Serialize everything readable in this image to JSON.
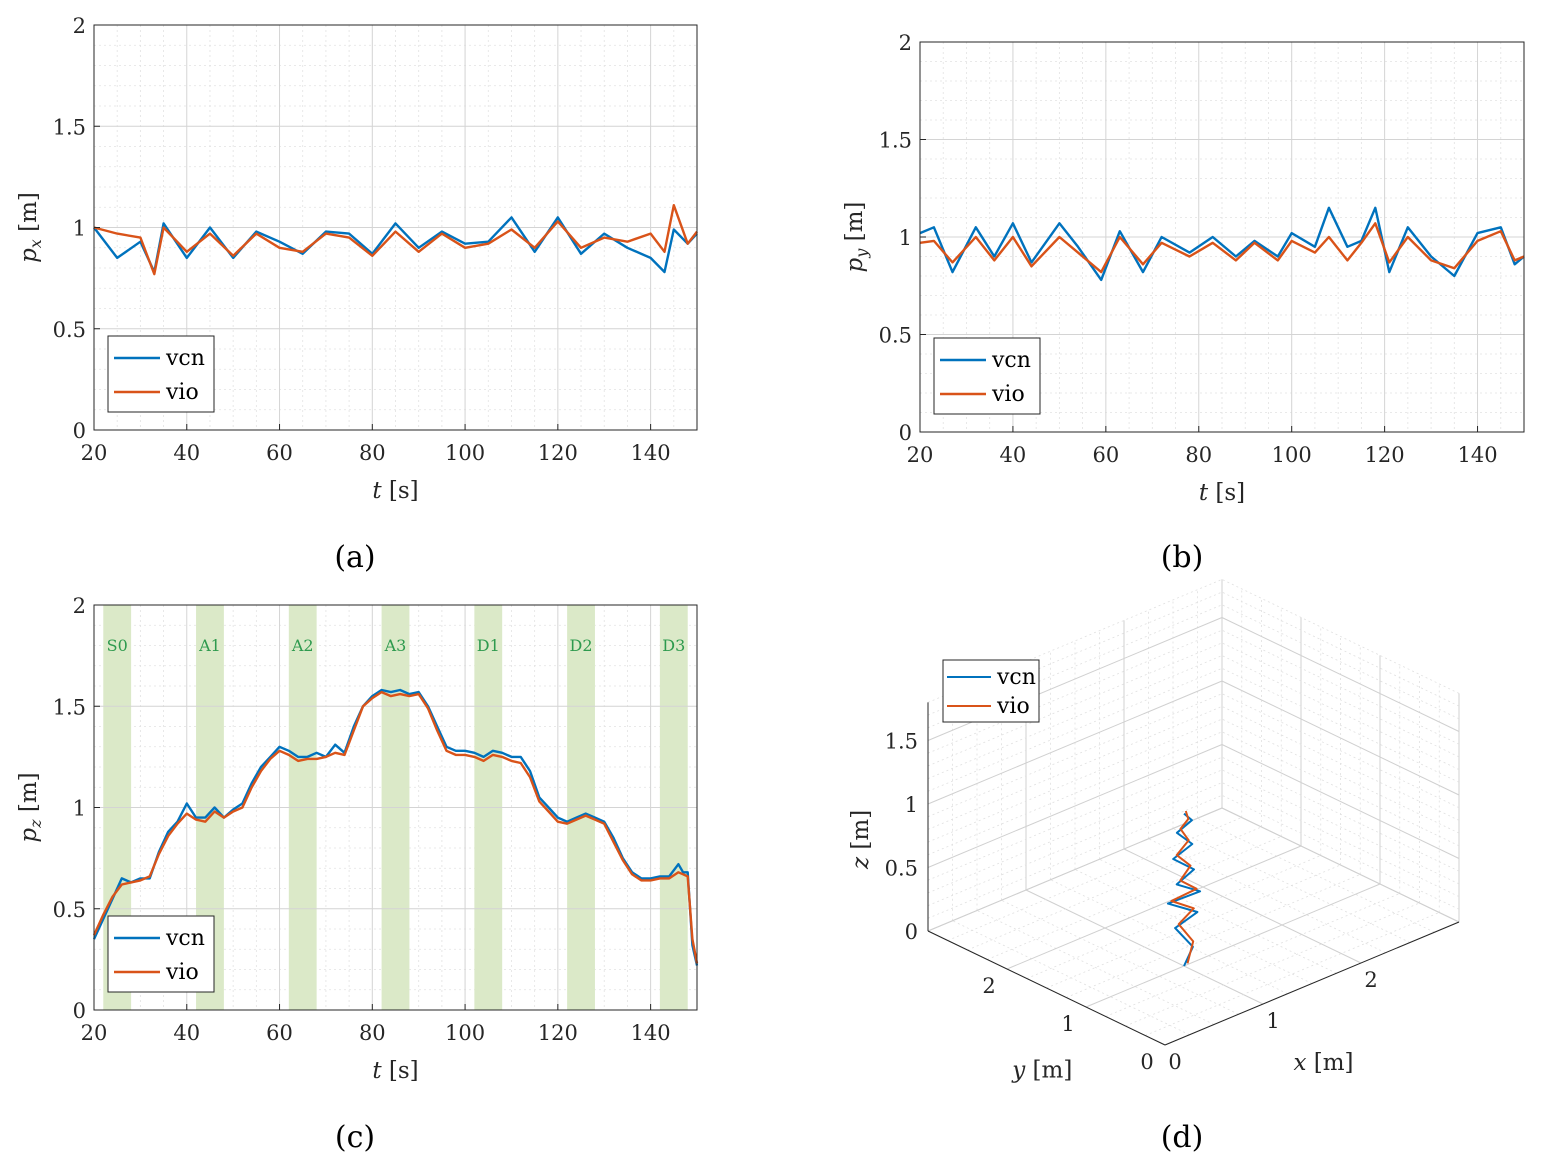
{
  "colors": {
    "vcn": "#0072BD",
    "vio": "#D95319",
    "phase_fill": "#dbe9c8",
    "phase_text": "#2e9a4e"
  },
  "legend": [
    "vcn",
    "vio"
  ],
  "subfigures": {
    "a": {
      "caption": "(a)",
      "ylabel": "p_x [m]",
      "xlabel": "t [s]"
    },
    "b": {
      "caption": "(b)",
      "ylabel": "p_y [m]",
      "xlabel": "t [s]"
    },
    "c": {
      "caption": "(c)",
      "ylabel": "p_z [m]",
      "xlabel": "t [s]"
    },
    "d": {
      "caption": "(d)",
      "xlabel": "x [m]",
      "ylabel": "y [m]",
      "zlabel": "z [m]"
    }
  },
  "chart_data": [
    {
      "id": "a",
      "type": "line",
      "title": "",
      "xlabel": "t [s]",
      "ylabel": "p_x [m]",
      "xlim": [
        20,
        150
      ],
      "ylim": [
        0,
        2
      ],
      "grid": true,
      "legend_position": "bottom-left",
      "xticks": [
        20,
        40,
        60,
        80,
        100,
        120,
        140
      ],
      "yticks": [
        0,
        0.5,
        1,
        1.5,
        2
      ],
      "x": [
        20,
        25,
        30,
        33,
        35,
        40,
        45,
        50,
        55,
        60,
        65,
        70,
        75,
        80,
        85,
        90,
        95,
        100,
        105,
        110,
        115,
        120,
        125,
        130,
        135,
        140,
        143,
        145,
        148,
        150
      ],
      "series": [
        {
          "name": "vcn",
          "values": [
            1.0,
            0.85,
            0.93,
            0.78,
            1.02,
            0.85,
            1.0,
            0.85,
            0.98,
            0.93,
            0.87,
            0.98,
            0.97,
            0.87,
            1.02,
            0.9,
            0.98,
            0.92,
            0.93,
            1.05,
            0.88,
            1.05,
            0.87,
            0.97,
            0.9,
            0.85,
            0.78,
            0.99,
            0.92,
            0.97
          ]
        },
        {
          "name": "vio",
          "values": [
            1.0,
            0.97,
            0.95,
            0.77,
            1.0,
            0.88,
            0.97,
            0.86,
            0.97,
            0.9,
            0.88,
            0.97,
            0.95,
            0.86,
            0.98,
            0.88,
            0.97,
            0.9,
            0.92,
            0.99,
            0.9,
            1.03,
            0.9,
            0.95,
            0.93,
            0.97,
            0.88,
            1.11,
            0.92,
            0.98
          ]
        }
      ]
    },
    {
      "id": "b",
      "type": "line",
      "title": "",
      "xlabel": "t [s]",
      "ylabel": "p_y [m]",
      "xlim": [
        20,
        150
      ],
      "ylim": [
        0,
        2
      ],
      "grid": true,
      "legend_position": "bottom-left",
      "xticks": [
        20,
        40,
        60,
        80,
        100,
        120,
        140
      ],
      "yticks": [
        0,
        0.5,
        1,
        1.5,
        2
      ],
      "x": [
        20,
        23,
        27,
        32,
        36,
        40,
        44,
        50,
        54,
        59,
        63,
        68,
        72,
        78,
        83,
        88,
        92,
        97,
        100,
        105,
        108,
        112,
        115,
        118,
        121,
        125,
        130,
        135,
        140,
        145,
        148,
        150
      ],
      "series": [
        {
          "name": "vcn",
          "values": [
            1.02,
            1.05,
            0.82,
            1.05,
            0.9,
            1.07,
            0.87,
            1.07,
            0.95,
            0.78,
            1.03,
            0.82,
            1.0,
            0.92,
            1.0,
            0.9,
            0.98,
            0.9,
            1.02,
            0.95,
            1.15,
            0.95,
            0.98,
            1.15,
            0.82,
            1.05,
            0.9,
            0.8,
            1.02,
            1.05,
            0.86,
            0.9
          ]
        },
        {
          "name": "vio",
          "values": [
            0.97,
            0.98,
            0.87,
            1.0,
            0.88,
            1.0,
            0.85,
            1.0,
            0.92,
            0.82,
            1.0,
            0.86,
            0.97,
            0.9,
            0.97,
            0.88,
            0.97,
            0.88,
            0.98,
            0.92,
            1.0,
            0.88,
            0.97,
            1.07,
            0.87,
            1.0,
            0.88,
            0.84,
            0.98,
            1.03,
            0.88,
            0.9
          ]
        }
      ]
    },
    {
      "id": "c",
      "type": "line",
      "title": "",
      "xlabel": "t [s]",
      "ylabel": "p_z [m]",
      "xlim": [
        20,
        150
      ],
      "ylim": [
        0,
        2
      ],
      "grid": true,
      "legend_position": "bottom-left",
      "xticks": [
        20,
        40,
        60,
        80,
        100,
        120,
        140
      ],
      "yticks": [
        0,
        0.5,
        1,
        1.5,
        2
      ],
      "phases": [
        {
          "label": "S0",
          "start": 22,
          "end": 28
        },
        {
          "label": "A1",
          "start": 42,
          "end": 48
        },
        {
          "label": "A2",
          "start": 62,
          "end": 68
        },
        {
          "label": "A3",
          "start": 82,
          "end": 88
        },
        {
          "label": "D1",
          "start": 102,
          "end": 108
        },
        {
          "label": "D2",
          "start": 122,
          "end": 128
        },
        {
          "label": "D3",
          "start": 142,
          "end": 148
        }
      ],
      "x": [
        20,
        22,
        24,
        26,
        28,
        30,
        32,
        34,
        36,
        38,
        40,
        42,
        44,
        46,
        48,
        50,
        52,
        54,
        56,
        58,
        60,
        62,
        64,
        66,
        68,
        70,
        72,
        74,
        76,
        78,
        80,
        82,
        84,
        86,
        88,
        90,
        92,
        94,
        96,
        98,
        100,
        102,
        104,
        106,
        108,
        110,
        112,
        114,
        116,
        118,
        120,
        122,
        124,
        126,
        128,
        130,
        132,
        134,
        136,
        138,
        140,
        142,
        144,
        146,
        147,
        148,
        149,
        150
      ],
      "series": [
        {
          "name": "vcn",
          "values": [
            0.35,
            0.45,
            0.55,
            0.65,
            0.63,
            0.65,
            0.65,
            0.78,
            0.88,
            0.93,
            1.02,
            0.95,
            0.95,
            1.0,
            0.95,
            0.99,
            1.02,
            1.12,
            1.2,
            1.25,
            1.3,
            1.28,
            1.25,
            1.25,
            1.27,
            1.25,
            1.31,
            1.27,
            1.4,
            1.5,
            1.55,
            1.58,
            1.57,
            1.58,
            1.56,
            1.57,
            1.5,
            1.4,
            1.3,
            1.28,
            1.28,
            1.27,
            1.25,
            1.28,
            1.27,
            1.25,
            1.25,
            1.18,
            1.05,
            1.0,
            0.95,
            0.93,
            0.95,
            0.97,
            0.95,
            0.93,
            0.85,
            0.75,
            0.68,
            0.65,
            0.65,
            0.66,
            0.66,
            0.72,
            0.68,
            0.68,
            0.32,
            0.22
          ]
        },
        {
          "name": "vio",
          "values": [
            0.37,
            0.47,
            0.56,
            0.62,
            0.63,
            0.64,
            0.66,
            0.77,
            0.86,
            0.92,
            0.97,
            0.94,
            0.93,
            0.98,
            0.95,
            0.98,
            1.0,
            1.1,
            1.18,
            1.24,
            1.28,
            1.26,
            1.23,
            1.24,
            1.24,
            1.25,
            1.27,
            1.26,
            1.38,
            1.5,
            1.54,
            1.57,
            1.55,
            1.56,
            1.55,
            1.56,
            1.49,
            1.38,
            1.28,
            1.26,
            1.26,
            1.25,
            1.23,
            1.26,
            1.25,
            1.23,
            1.22,
            1.15,
            1.03,
            0.98,
            0.93,
            0.92,
            0.94,
            0.96,
            0.94,
            0.92,
            0.83,
            0.74,
            0.67,
            0.64,
            0.64,
            0.65,
            0.65,
            0.68,
            0.67,
            0.66,
            0.35,
            0.23
          ]
        }
      ]
    },
    {
      "id": "d",
      "type": "line",
      "title": "",
      "projection": "3d",
      "xlabel": "x [m]",
      "ylabel": "y [m]",
      "zlabel": "z [m]",
      "xlim": [
        0,
        3
      ],
      "ylim": [
        0,
        3
      ],
      "zlim": [
        0,
        1.8
      ],
      "grid": true,
      "legend_position": "top-left",
      "xticks": [
        0,
        1,
        2
      ],
      "yticks": [
        0,
        1,
        2
      ],
      "zticks": [
        0,
        0.5,
        1,
        1.5
      ],
      "series": [
        {
          "name": "vcn",
          "points": [
            [
              1.0,
              1.0,
              0.0
            ],
            [
              1.05,
              0.95,
              0.15
            ],
            [
              0.95,
              1.05,
              0.3
            ],
            [
              1.08,
              0.93,
              0.42
            ],
            [
              0.9,
              1.08,
              0.5
            ],
            [
              1.1,
              0.92,
              0.58
            ],
            [
              0.95,
              1.03,
              0.65
            ],
            [
              1.07,
              0.96,
              0.75
            ],
            [
              0.93,
              1.05,
              0.85
            ],
            [
              1.06,
              0.97,
              0.95
            ],
            [
              0.96,
              1.04,
              1.05
            ],
            [
              1.04,
              0.95,
              1.15
            ],
            [
              1.0,
              1.0,
              1.2
            ]
          ]
        },
        {
          "name": "vio",
          "points": [
            [
              1.02,
              0.98,
              0.02
            ],
            [
              1.07,
              0.97,
              0.18
            ],
            [
              0.97,
              1.03,
              0.33
            ],
            [
              1.06,
              0.95,
              0.45
            ],
            [
              0.92,
              1.06,
              0.52
            ],
            [
              1.08,
              0.94,
              0.6
            ],
            [
              0.97,
              1.01,
              0.68
            ],
            [
              1.05,
              0.98,
              0.78
            ],
            [
              0.95,
              1.03,
              0.88
            ],
            [
              1.04,
              0.99,
              0.98
            ],
            [
              0.98,
              1.02,
              1.08
            ],
            [
              1.02,
              0.97,
              1.16
            ],
            [
              1.01,
              0.99,
              1.22
            ]
          ]
        }
      ]
    }
  ]
}
